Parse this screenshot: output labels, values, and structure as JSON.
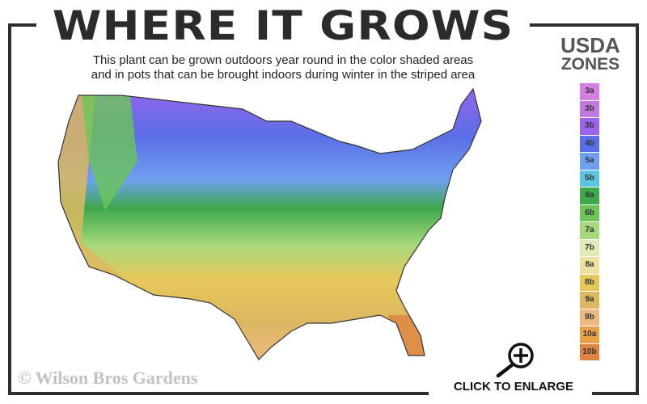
{
  "header": {
    "title": "WHERE IT GROWS",
    "subtitle_line1": "This plant can be grown outdoors year round in the color shaded areas",
    "subtitle_line2": "and in pots that can be brought indoors during winter in the striped area"
  },
  "legend": {
    "title_line1": "USDA",
    "title_line2": "ZONES",
    "zones": [
      {
        "label": "3a",
        "color": "#d57fe0"
      },
      {
        "label": "3b",
        "color": "#c07ae0"
      },
      {
        "label": "3b",
        "color": "#9d63ec"
      },
      {
        "label": "4b",
        "color": "#5a6fe6"
      },
      {
        "label": "5a",
        "color": "#6f9ff0"
      },
      {
        "label": "5b",
        "color": "#5cc4dd"
      },
      {
        "label": "6a",
        "color": "#3ea84c"
      },
      {
        "label": "6b",
        "color": "#6cc45a"
      },
      {
        "label": "7a",
        "color": "#a8d87c"
      },
      {
        "label": "7b",
        "color": "#dfeab8"
      },
      {
        "label": "8a",
        "color": "#ede2a0"
      },
      {
        "label": "8b",
        "color": "#e6c85a"
      },
      {
        "label": "9a",
        "color": "#dcb860"
      },
      {
        "label": "9b",
        "color": "#eeb883"
      },
      {
        "label": "10a",
        "color": "#e7a045"
      },
      {
        "label": "10b",
        "color": "#dd8440"
      }
    ]
  },
  "footer": {
    "copyright": "© Wilson Bros Gardens",
    "enlarge_label": "CLICK TO ENLARGE"
  }
}
